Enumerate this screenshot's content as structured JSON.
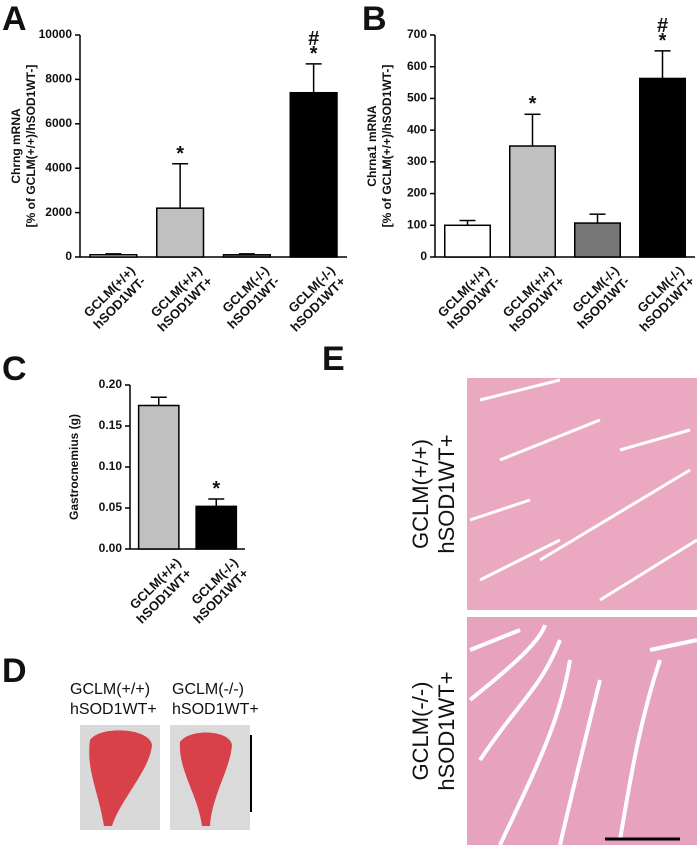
{
  "chart_data": [
    {
      "type": "bar",
      "ylabel": "Chrng mRNA\n[% of GCLM(+/+)/hSOD1WT-]",
      "categories": [
        "GCLM(+/+)\nhSOD1WT-",
        "GCLM(+/+)\nhSOD1WT+",
        "GCLM(-/-)\nhSOD1WT-",
        "GCLM(-/-)\nhSOD1WT+"
      ],
      "values": [
        100,
        2200,
        100,
        7400
      ],
      "errors": [
        40,
        2000,
        40,
        1300
      ],
      "annotations": [
        null,
        "*",
        null,
        "#\n*"
      ],
      "colors": [
        "#ffffff",
        "#c0c0c0",
        "#777777",
        "#000000"
      ],
      "ylim": [
        0,
        10000
      ],
      "yticks": [
        0,
        2000,
        4000,
        6000,
        8000,
        10000
      ]
    },
    {
      "type": "bar",
      "ylabel": "Chrna1 mRNA\n[% of GCLM(+/+)/hSOD1WT-]",
      "categories": [
        "GCLM(+/+)\nhSOD1WT-",
        "GCLM(+/+)\nhSOD1WT+",
        "GCLM(-/-)\nhSOD1WT-",
        "GCLM(-/-)\nhSOD1WT+"
      ],
      "values": [
        100,
        350,
        107,
        563
      ],
      "errors": [
        15,
        100,
        28,
        87
      ],
      "annotations": [
        null,
        "*",
        null,
        "#\n*"
      ],
      "colors": [
        "#ffffff",
        "#c0c0c0",
        "#777777",
        "#000000"
      ],
      "ylim": [
        0,
        700
      ],
      "yticks": [
        0,
        100,
        200,
        300,
        400,
        500,
        600,
        700
      ]
    },
    {
      "type": "bar",
      "ylabel": "Gastrocnemius (g)",
      "categories": [
        "GCLM(+/+)\nhSOD1WT+",
        "GCLM(-/-)\nhSOD1WT+"
      ],
      "values": [
        0.175,
        0.052
      ],
      "errors": [
        0.01,
        0.009
      ],
      "annotations": [
        null,
        "*"
      ],
      "colors": [
        "#c0c0c0",
        "#000000"
      ],
      "ylim": [
        0,
        0.2
      ],
      "yticks": [
        {
          "value": 0,
          "label": "0.00"
        },
        0.05,
        {
          "value": 0.1,
          "label": "0.10"
        },
        0.15,
        {
          "value": 0.2,
          "label": "0.20"
        }
      ]
    }
  ],
  "figure": {
    "panel_labels": [
      "A",
      "B",
      "C",
      "D",
      "E"
    ],
    "d_labels": [
      "GCLM(+/+)\nhSOD1WT+",
      "GCLM(-/-)\nhSOD1WT+"
    ],
    "e_labels": [
      "GCLM(+/+)\nhSOD1WT+",
      "GCLM(-/-)\nhSOD1WT+"
    ]
  }
}
